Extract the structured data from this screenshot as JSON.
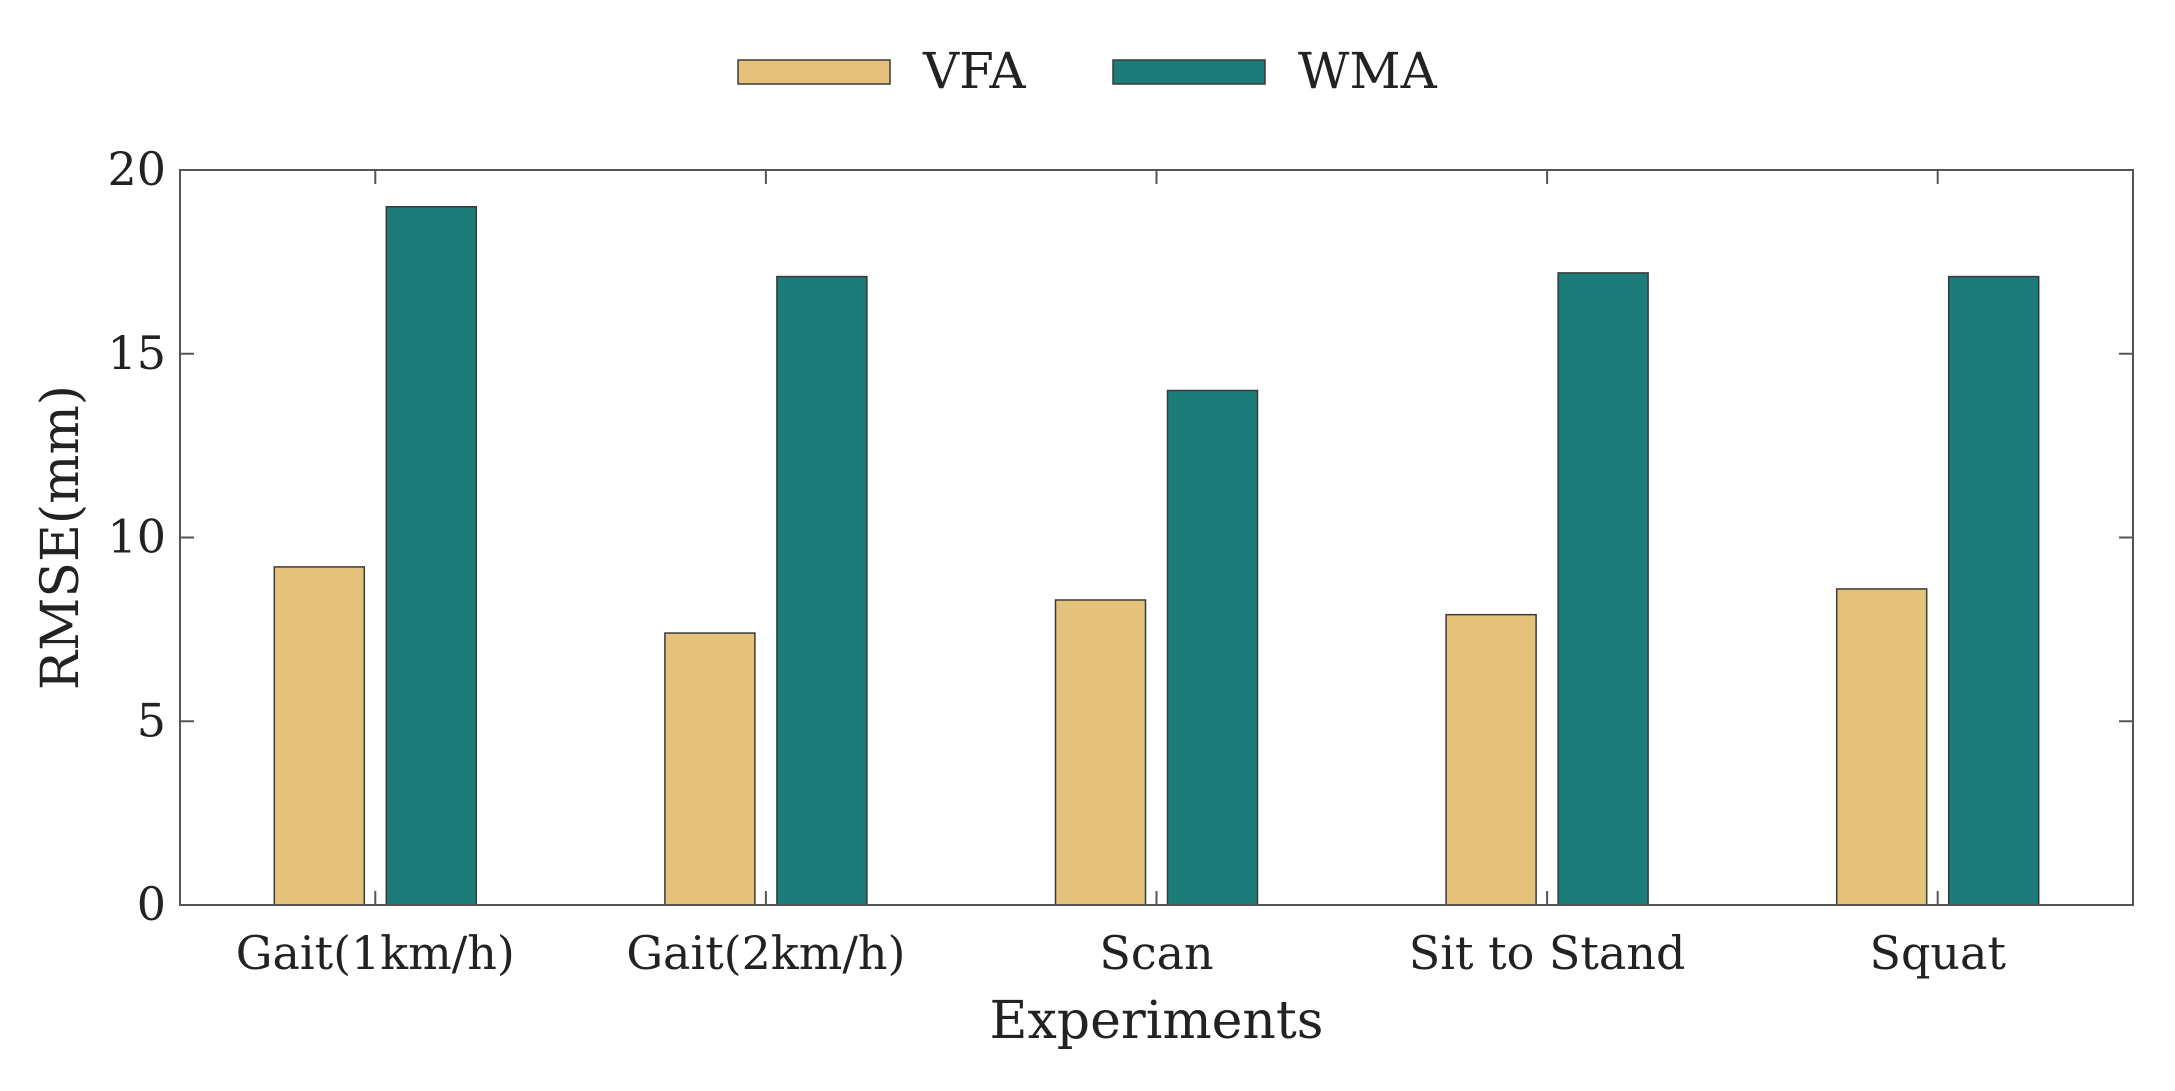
{
  "chart_data": {
    "type": "bar",
    "title": "",
    "xlabel": "Experiments",
    "ylabel": "RMSE(mm)",
    "categories": [
      "Gait(1km/h)",
      "Gait(2km/h)",
      "Scan",
      "Sit to Stand",
      "Squat"
    ],
    "series": [
      {
        "name": "VFA",
        "color": "#E4C27C",
        "values": [
          9.2,
          7.4,
          8.3,
          7.9,
          8.6
        ]
      },
      {
        "name": "WMA",
        "color": "#1B7C79",
        "values": [
          19.0,
          17.1,
          14.0,
          17.2,
          17.1
        ]
      }
    ],
    "ylim": [
      0,
      20
    ],
    "yticks": [
      0,
      5,
      10,
      15,
      20
    ],
    "grid": false,
    "legend_position": "top-center"
  }
}
